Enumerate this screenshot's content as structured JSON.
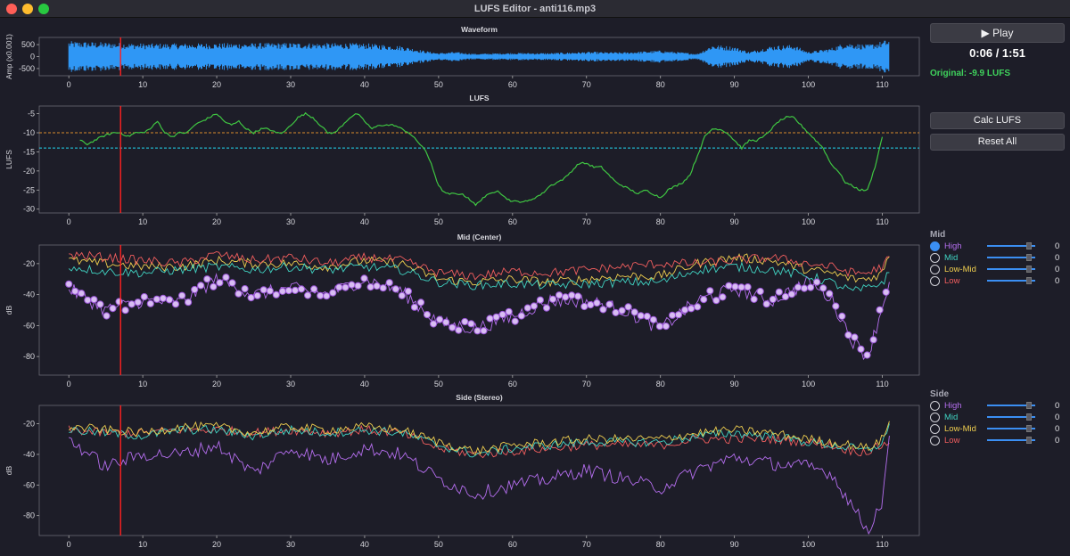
{
  "window": {
    "title": "LUFS Editor - anti116.mp3"
  },
  "playback": {
    "play_label": "▶ Play",
    "time": "0:06 / 1:51",
    "original": "Original: -9.9 LUFS",
    "playhead_seconds": 7
  },
  "buttons": {
    "calc_label": "Calc LUFS",
    "reset_label": "Reset All"
  },
  "x_ticks": [
    0,
    10,
    20,
    30,
    40,
    50,
    60,
    70,
    80,
    90,
    100,
    110
  ],
  "colors": {
    "bg": "#1d1d28",
    "waveform": "#2f97f5",
    "lufs": "#3fc542",
    "target_orange": "#d98a2b",
    "target_cyan": "#21d7f0",
    "playhead": "#ff2020",
    "high": "#b56eef",
    "mid": "#40d3c2",
    "lowmid": "#f0cf4f",
    "low": "#f25e5e",
    "dot_fill": "#d8bdf2",
    "dot_stroke": "#9a55d8"
  },
  "waveform": {
    "title": "Waveform",
    "ylabel": "Amp (x0.001)",
    "yticks": [
      500,
      0,
      -500
    ],
    "ylim": [
      -800,
      800
    ]
  },
  "lufs": {
    "title": "LUFS",
    "ylabel": "LUFS",
    "yticks": [
      -5,
      -10,
      -15,
      -20,
      -25,
      -30
    ],
    "ylim": [
      -31,
      -3
    ],
    "target_orange": -10,
    "target_cyan": -14
  },
  "mid_plot": {
    "title": "Mid (Center)",
    "ylabel": "dB",
    "yticks": [
      -20,
      -40,
      -60,
      -80
    ],
    "ylim": [
      -92,
      -8
    ]
  },
  "side_plot": {
    "title": "Side (Stereo)",
    "ylabel": "dB",
    "yticks": [
      -20,
      -40,
      -60,
      -80
    ],
    "ylim": [
      -93,
      -8
    ]
  },
  "mid_panel": {
    "title": "Mid",
    "bands": [
      {
        "label": "High",
        "value": "0",
        "selected": true,
        "color": "#b56eef"
      },
      {
        "label": "Mid",
        "value": "0",
        "selected": false,
        "color": "#40d3c2"
      },
      {
        "label": "Low-Mid",
        "value": "0",
        "selected": false,
        "color": "#f0cf4f"
      },
      {
        "label": "Low",
        "value": "0",
        "selected": false,
        "color": "#f25e5e"
      }
    ]
  },
  "side_panel": {
    "title": "Side",
    "bands": [
      {
        "label": "High",
        "value": "0",
        "selected": false,
        "color": "#b56eef"
      },
      {
        "label": "Mid",
        "value": "0",
        "selected": false,
        "color": "#40d3c2"
      },
      {
        "label": "Low-Mid",
        "value": "0",
        "selected": false,
        "color": "#f0cf4f"
      },
      {
        "label": "Low",
        "value": "0",
        "selected": false,
        "color": "#f25e5e"
      }
    ]
  },
  "chart_data": [
    {
      "type": "line",
      "title": "Waveform",
      "xlabel": "",
      "ylabel": "Amp (x0.001)",
      "xlim": [
        -4,
        115
      ],
      "ylim": [
        -800,
        800
      ],
      "envelope": {
        "x": [
          0,
          5,
          10,
          20,
          30,
          40,
          45,
          48,
          50,
          52,
          55,
          60,
          65,
          70,
          75,
          80,
          85,
          87,
          90,
          92,
          95,
          98,
          100,
          103,
          105,
          108,
          110,
          111
        ],
        "amp": [
          650,
          600,
          550,
          560,
          580,
          560,
          450,
          250,
          150,
          200,
          120,
          160,
          150,
          200,
          180,
          260,
          120,
          500,
          420,
          200,
          450,
          500,
          200,
          350,
          600,
          500,
          650,
          750
        ]
      }
    },
    {
      "type": "line",
      "title": "LUFS",
      "xlabel": "",
      "ylabel": "LUFS",
      "xlim": [
        -4,
        115
      ],
      "ylim": [
        -31,
        -3
      ],
      "x": [
        1.5,
        2.5,
        3.5,
        4.5,
        6,
        7,
        8,
        9,
        10,
        11,
        12,
        13,
        14,
        15,
        16,
        17,
        18,
        19,
        20,
        21,
        22,
        23,
        24,
        25,
        26,
        27,
        28,
        29,
        30,
        31,
        32,
        33,
        34,
        35,
        36,
        37,
        38,
        39,
        40,
        41,
        42,
        43,
        44,
        45,
        46,
        47,
        48,
        49,
        50,
        51,
        52,
        53,
        54,
        55,
        56,
        57,
        58,
        59,
        60,
        61,
        62,
        63,
        64,
        65,
        66,
        67,
        68,
        69,
        70,
        71,
        72,
        73,
        74,
        75,
        76,
        77,
        78,
        79,
        80,
        81,
        82,
        83,
        84,
        85,
        86,
        87,
        88,
        89,
        90,
        91,
        92,
        93,
        94,
        95,
        96,
        97,
        98,
        99,
        100,
        101,
        102,
        103,
        104,
        105,
        106,
        107,
        108,
        109,
        110
      ],
      "y": [
        -12,
        -13,
        -12,
        -11,
        -10,
        -10,
        -11,
        -10,
        -10,
        -9,
        -7,
        -10,
        -11,
        -10,
        -10,
        -8,
        -7,
        -6,
        -5,
        -7,
        -8,
        -7,
        -9,
        -10,
        -9,
        -9,
        -10,
        -10,
        -8,
        -6,
        -5,
        -6,
        -8,
        -10,
        -10,
        -8,
        -6,
        -5,
        -7,
        -9,
        -8,
        -8,
        -8,
        -9,
        -10,
        -12,
        -14,
        -18,
        -24,
        -26,
        -26,
        -26,
        -27,
        -29,
        -27,
        -26,
        -25,
        -27,
        -28,
        -28,
        -28,
        -27,
        -26,
        -24,
        -23,
        -22,
        -20,
        -18,
        -18,
        -19,
        -19,
        -21,
        -23,
        -24,
        -25,
        -26,
        -25,
        -26,
        -27,
        -25,
        -24,
        -23,
        -21,
        -16,
        -11,
        -9,
        -9,
        -10,
        -12,
        -14,
        -12,
        -12,
        -11,
        -9,
        -7,
        -6,
        -6,
        -8,
        -10,
        -12,
        -14,
        -18,
        -20,
        -23,
        -24,
        -25,
        -25,
        -19,
        -11
      ]
    },
    {
      "type": "line",
      "title": "Mid (Center)",
      "xlabel": "",
      "ylabel": "dB",
      "xlim": [
        -4,
        115
      ],
      "ylim": [
        -92,
        -8
      ],
      "x": [
        0,
        5,
        10,
        15,
        20,
        25,
        30,
        35,
        40,
        45,
        50,
        55,
        60,
        65,
        70,
        75,
        80,
        85,
        90,
        95,
        100,
        103,
        106,
        108,
        110,
        111
      ],
      "series": [
        {
          "name": "Low",
          "values": [
            -14,
            -16,
            -18,
            -20,
            -14,
            -18,
            -16,
            -20,
            -16,
            -18,
            -26,
            -28,
            -25,
            -26,
            -24,
            -22,
            -20,
            -20,
            -18,
            -16,
            -20,
            -22,
            -26,
            -26,
            -22,
            -16
          ]
        },
        {
          "name": "Low-Mid",
          "values": [
            -18,
            -20,
            -22,
            -22,
            -18,
            -20,
            -20,
            -22,
            -18,
            -20,
            -30,
            -32,
            -30,
            -32,
            -30,
            -28,
            -28,
            -20,
            -16,
            -18,
            -24,
            -26,
            -30,
            -30,
            -26,
            -14
          ]
        },
        {
          "name": "Mid",
          "values": [
            -22,
            -25,
            -26,
            -24,
            -22,
            -24,
            -22,
            -24,
            -22,
            -24,
            -32,
            -34,
            -33,
            -34,
            -33,
            -32,
            -32,
            -24,
            -22,
            -24,
            -28,
            -32,
            -38,
            -36,
            -32,
            -26
          ]
        },
        {
          "name": "High",
          "values": [
            -36,
            -50,
            -44,
            -45,
            -30,
            -40,
            -36,
            -40,
            -30,
            -38,
            -58,
            -62,
            -54,
            -44,
            -44,
            -50,
            -62,
            -44,
            -36,
            -44,
            -32,
            -42,
            -70,
            -80,
            -48,
            -30
          ]
        }
      ]
    },
    {
      "type": "line",
      "title": "Side (Stereo)",
      "xlabel": "",
      "ylabel": "dB",
      "xlim": [
        -4,
        115
      ],
      "ylim": [
        -93,
        -8
      ],
      "x": [
        0,
        5,
        10,
        15,
        20,
        25,
        30,
        35,
        40,
        45,
        50,
        55,
        60,
        65,
        70,
        75,
        80,
        85,
        90,
        95,
        100,
        103,
        106,
        108,
        110,
        111
      ],
      "series": [
        {
          "name": "Low",
          "values": [
            -24,
            -26,
            -26,
            -24,
            -24,
            -26,
            -24,
            -26,
            -24,
            -26,
            -36,
            -40,
            -38,
            -36,
            -34,
            -34,
            -34,
            -30,
            -30,
            -30,
            -32,
            -34,
            -38,
            -38,
            -34,
            -32
          ]
        },
        {
          "name": "Low-Mid",
          "values": [
            -22,
            -24,
            -26,
            -22,
            -22,
            -26,
            -22,
            -24,
            -22,
            -24,
            -32,
            -38,
            -34,
            -32,
            -30,
            -30,
            -30,
            -26,
            -24,
            -26,
            -30,
            -32,
            -34,
            -36,
            -30,
            -18
          ]
        },
        {
          "name": "Mid",
          "values": [
            -24,
            -26,
            -28,
            -24,
            -24,
            -28,
            -24,
            -26,
            -24,
            -26,
            -34,
            -40,
            -36,
            -34,
            -32,
            -32,
            -32,
            -28,
            -26,
            -28,
            -32,
            -34,
            -36,
            -38,
            -32,
            -22
          ]
        },
        {
          "name": "High",
          "values": [
            -30,
            -48,
            -40,
            -40,
            -34,
            -52,
            -36,
            -44,
            -36,
            -40,
            -56,
            -66,
            -60,
            -56,
            -50,
            -56,
            -62,
            -50,
            -42,
            -46,
            -48,
            -52,
            -74,
            -90,
            -70,
            -30
          ]
        }
      ]
    }
  ]
}
